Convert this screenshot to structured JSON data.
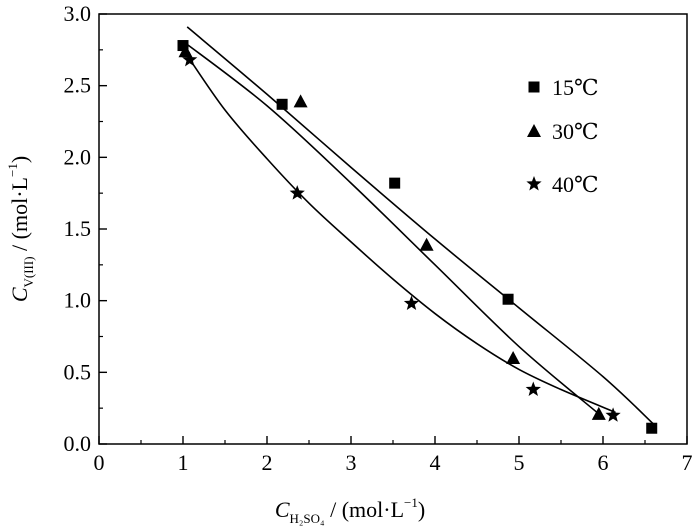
{
  "chart_data": {
    "type": "scatter",
    "xlim": [
      0,
      7
    ],
    "ylim": [
      0.0,
      3.0
    ],
    "grid": false,
    "legend_position": "top-right",
    "x_ticks": [
      "0",
      "1",
      "2",
      "3",
      "4",
      "5",
      "6",
      "7"
    ],
    "y_ticks": [
      "0.0",
      "0.5",
      "1.0",
      "1.5",
      "2.0",
      "2.5",
      "3.0"
    ],
    "xlabel": {
      "main": "C",
      "sub": "H₂SO₄",
      "unit": " / (mol·L",
      "exp": "−1",
      "close": ")"
    },
    "ylabel": {
      "main": "C",
      "sub": "V(III)",
      "unit": " / (mol·L",
      "exp": "−1",
      "close": ")"
    },
    "series": [
      {
        "name": "15℃",
        "marker": "square",
        "x": [
          1.0,
          2.18,
          3.52,
          4.87,
          6.58
        ],
        "y": [
          2.78,
          2.37,
          1.82,
          1.01,
          0.11
        ],
        "fit_x": [
          1.05,
          2.0,
          3.0,
          4.0,
          5.0,
          6.0,
          6.6
        ],
        "fit_y": [
          2.91,
          2.44,
          1.93,
          1.43,
          0.95,
          0.47,
          0.14
        ]
      },
      {
        "name": "30℃",
        "marker": "triangle",
        "x": [
          1.03,
          2.4,
          3.9,
          4.93,
          5.95
        ],
        "y": [
          2.74,
          2.39,
          1.39,
          0.6,
          0.21
        ],
        "fit_x": [
          1.0,
          2.0,
          3.0,
          4.0,
          5.0,
          5.95
        ],
        "fit_y": [
          2.81,
          2.36,
          1.82,
          1.25,
          0.68,
          0.21
        ]
      },
      {
        "name": "40℃",
        "marker": "star",
        "x": [
          1.08,
          2.36,
          3.72,
          5.17,
          6.12
        ],
        "y": [
          2.68,
          1.75,
          0.98,
          0.38,
          0.2
        ],
        "fit_x": [
          1.05,
          1.5,
          2.0,
          2.5,
          3.0,
          3.5,
          4.0,
          4.5,
          5.0,
          5.5,
          6.15
        ],
        "fit_y": [
          2.71,
          2.33,
          1.99,
          1.68,
          1.41,
          1.15,
          0.91,
          0.7,
          0.52,
          0.38,
          0.22
        ]
      }
    ]
  }
}
